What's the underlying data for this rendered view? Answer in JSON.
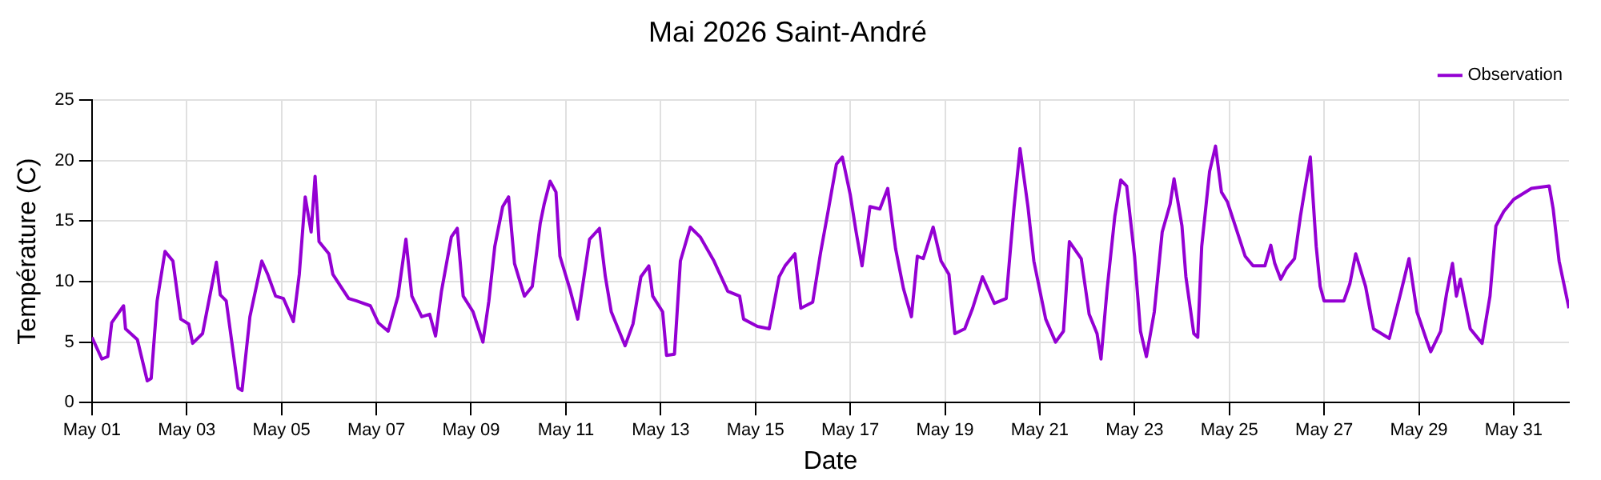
{
  "chart_data": {
    "type": "line",
    "title": "Mai 2026 Saint-André",
    "xlabel": "Date",
    "ylabel": "Température (C)",
    "xlim": [
      "2026-05-01T00:00",
      "2026-06-01T04:00"
    ],
    "xticks": [
      {
        "value": "2026-05-01",
        "label": "May 01"
      },
      {
        "value": "2026-05-03",
        "label": "May 03"
      },
      {
        "value": "2026-05-05",
        "label": "May 05"
      },
      {
        "value": "2026-05-07",
        "label": "May 07"
      },
      {
        "value": "2026-05-09",
        "label": "May 09"
      },
      {
        "value": "2026-05-11",
        "label": "May 11"
      },
      {
        "value": "2026-05-13",
        "label": "May 13"
      },
      {
        "value": "2026-05-15",
        "label": "May 15"
      },
      {
        "value": "2026-05-17",
        "label": "May 17"
      },
      {
        "value": "2026-05-19",
        "label": "May 19"
      },
      {
        "value": "2026-05-21",
        "label": "May 21"
      },
      {
        "value": "2026-05-23",
        "label": "May 23"
      },
      {
        "value": "2026-05-25",
        "label": "May 25"
      },
      {
        "value": "2026-05-27",
        "label": "May 27"
      },
      {
        "value": "2026-05-29",
        "label": "May 29"
      },
      {
        "value": "2026-05-31",
        "label": "May 31"
      }
    ],
    "ylim": [
      0,
      25
    ],
    "yticks": [
      0,
      5,
      10,
      15,
      20,
      25
    ],
    "grid": true,
    "legend": "top right",
    "marker": "none",
    "line_style": "solid",
    "x": [
      "2026-05-01T00:00",
      "2026-05-01T05:00",
      "2026-05-01T08:00",
      "2026-05-01T10:00",
      "2026-05-01T16:00",
      "2026-05-01T17:00",
      "2026-05-01T23:00",
      "2026-05-02T04:00",
      "2026-05-02T06:00",
      "2026-05-02T09:00",
      "2026-05-02T13:00",
      "2026-05-02T17:00",
      "2026-05-02T21:00",
      "2026-05-03T01:00",
      "2026-05-03T03:00",
      "2026-05-03T08:00",
      "2026-05-03T15:00",
      "2026-05-03T17:00",
      "2026-05-03T20:00",
      "2026-05-04T02:00",
      "2026-05-04T04:00",
      "2026-05-04T08:00",
      "2026-05-04T14:00",
      "2026-05-04T17:00",
      "2026-05-04T21:00",
      "2026-05-05T01:00",
      "2026-05-05T06:00",
      "2026-05-05T09:00",
      "2026-05-05T12:00",
      "2026-05-05T15:00",
      "2026-05-05T17:00",
      "2026-05-05T19:00",
      "2026-05-06T00:00",
      "2026-05-06T02:00",
      "2026-05-06T06:00",
      "2026-05-06T10:00",
      "2026-05-06T14:00",
      "2026-05-06T21:00",
      "2026-05-07T01:00",
      "2026-05-07T06:00",
      "2026-05-07T11:00",
      "2026-05-07T15:00",
      "2026-05-07T18:00",
      "2026-05-07T23:00",
      "2026-05-08T03:00",
      "2026-05-08T06:00",
      "2026-05-08T09:00",
      "2026-05-08T14:00",
      "2026-05-08T17:00",
      "2026-05-08T20:00",
      "2026-05-09T01:00",
      "2026-05-09T06:00",
      "2026-05-09T09:00",
      "2026-05-09T12:00",
      "2026-05-09T16:00",
      "2026-05-09T19:00",
      "2026-05-09T22:00",
      "2026-05-10T03:00",
      "2026-05-10T07:00",
      "2026-05-10T11:00",
      "2026-05-10T13:00",
      "2026-05-10T16:00",
      "2026-05-10T19:00",
      "2026-05-10T21:00",
      "2026-05-11T02:00",
      "2026-05-11T06:00",
      "2026-05-11T12:00",
      "2026-05-11T17:00",
      "2026-05-11T20:00",
      "2026-05-11T23:00",
      "2026-05-12T06:00",
      "2026-05-12T10:00",
      "2026-05-12T14:00",
      "2026-05-12T18:00",
      "2026-05-12T20:00",
      "2026-05-13T01:00",
      "2026-05-13T03:00",
      "2026-05-13T07:00",
      "2026-05-13T10:00",
      "2026-05-13T15:00",
      "2026-05-13T20:00",
      "2026-05-14T03:00",
      "2026-05-14T10:00",
      "2026-05-14T16:00",
      "2026-05-14T18:00",
      "2026-05-15T01:00",
      "2026-05-15T07:00",
      "2026-05-15T12:00",
      "2026-05-15T15:00",
      "2026-05-15T20:00",
      "2026-05-15T23:00",
      "2026-05-16T05:00",
      "2026-05-16T09:00",
      "2026-05-16T13:00",
      "2026-05-16T17:00",
      "2026-05-16T20:00",
      "2026-05-17T00:00",
      "2026-05-17T03:00",
      "2026-05-17T06:00",
      "2026-05-17T10:00",
      "2026-05-17T15:00",
      "2026-05-17T19:00",
      "2026-05-17T23:00",
      "2026-05-18T03:00",
      "2026-05-18T07:00",
      "2026-05-18T10:00",
      "2026-05-18T13:00",
      "2026-05-18T18:00",
      "2026-05-18T22:00",
      "2026-05-19T02:00",
      "2026-05-19T05:00",
      "2026-05-19T10:00",
      "2026-05-19T14:00",
      "2026-05-19T19:00",
      "2026-05-20T01:00",
      "2026-05-20T07:00",
      "2026-05-20T11:00",
      "2026-05-20T14:00",
      "2026-05-20T18:00",
      "2026-05-20T21:00",
      "2026-05-21T03:00",
      "2026-05-21T08:00",
      "2026-05-21T12:00",
      "2026-05-21T15:00",
      "2026-05-21T21:00",
      "2026-05-22T01:00",
      "2026-05-22T05:00",
      "2026-05-22T07:00",
      "2026-05-22T10:00",
      "2026-05-22T14:00",
      "2026-05-22T17:00",
      "2026-05-22T20:00",
      "2026-05-23T00:00",
      "2026-05-23T03:00",
      "2026-05-23T06:00",
      "2026-05-23T10:00",
      "2026-05-23T14:00",
      "2026-05-23T18:00",
      "2026-05-23T20:00",
      "2026-05-24T00:00",
      "2026-05-24T02:00",
      "2026-05-24T06:00",
      "2026-05-24T08:00",
      "2026-05-24T10:00",
      "2026-05-24T14:00",
      "2026-05-24T17:00",
      "2026-05-24T20:00",
      "2026-05-24T23:00",
      "2026-05-25T03:00",
      "2026-05-25T08:00",
      "2026-05-25T12:00",
      "2026-05-25T18:00",
      "2026-05-25T21:00",
      "2026-05-25T23:00",
      "2026-05-26T02:00",
      "2026-05-26T05:00",
      "2026-05-26T09:00",
      "2026-05-26T12:00",
      "2026-05-26T14:00",
      "2026-05-26T17:00",
      "2026-05-26T20:00",
      "2026-05-26T22:00",
      "2026-05-27T00:00",
      "2026-05-27T10:00",
      "2026-05-27T13:00",
      "2026-05-27T16:00",
      "2026-05-27T21:00",
      "2026-05-28T01:00",
      "2026-05-28T09:00",
      "2026-05-28T15:00",
      "2026-05-28T19:00",
      "2026-05-28T23:00",
      "2026-05-29T04:00",
      "2026-05-29T06:00",
      "2026-05-29T11:00",
      "2026-05-29T14:00",
      "2026-05-29T17:00",
      "2026-05-29T19:00",
      "2026-05-29T21:00",
      "2026-05-30T02:00",
      "2026-05-30T08:00",
      "2026-05-30T12:00",
      "2026-05-30T15:00",
      "2026-05-30T19:00",
      "2026-05-31T00:00",
      "2026-05-31T09:00",
      "2026-05-31T18:00",
      "2026-05-31T20:00",
      "2026-05-31T23:00",
      "2026-06-01T04:00"
    ],
    "series": [
      {
        "name": "Observation",
        "color": "#9400d3",
        "values": [
          5.4,
          3.6,
          3.8,
          6.6,
          8.0,
          6.1,
          5.2,
          1.8,
          2.0,
          8.4,
          12.5,
          11.7,
          6.9,
          6.5,
          4.9,
          5.7,
          11.6,
          8.9,
          8.4,
          1.2,
          1.0,
          7.1,
          11.7,
          10.6,
          8.8,
          8.6,
          6.7,
          10.6,
          17.0,
          14.1,
          18.7,
          13.3,
          12.3,
          10.6,
          9.6,
          8.6,
          8.4,
          8.0,
          6.6,
          5.9,
          8.8,
          13.5,
          8.8,
          7.1,
          7.3,
          5.5,
          9.2,
          13.7,
          14.4,
          8.8,
          7.5,
          5.0,
          8.4,
          12.9,
          16.2,
          17.0,
          11.5,
          8.8,
          9.6,
          14.8,
          16.4,
          18.3,
          17.4,
          12.1,
          9.4,
          6.9,
          13.5,
          14.4,
          10.4,
          7.5,
          4.7,
          6.5,
          10.4,
          11.3,
          8.8,
          7.5,
          3.9,
          4.0,
          11.7,
          14.5,
          13.7,
          11.7,
          9.2,
          8.8,
          6.9,
          6.3,
          6.1,
          10.4,
          11.3,
          12.3,
          7.8,
          8.3,
          12.4,
          16.0,
          19.7,
          20.3,
          17.2,
          14.1,
          11.3,
          16.2,
          16.0,
          17.7,
          12.7,
          9.4,
          7.1,
          12.1,
          11.9,
          14.5,
          11.7,
          10.6,
          5.7,
          6.1,
          7.8,
          10.4,
          8.2,
          8.6,
          16.2,
          21.0,
          16.2,
          11.7,
          6.9,
          5.0,
          5.9,
          13.3,
          11.9,
          7.3,
          5.7,
          3.6,
          9.2,
          15.4,
          18.4,
          17.9,
          12.1,
          5.9,
          3.8,
          7.5,
          14.1,
          16.4,
          18.5,
          14.6,
          10.4,
          5.7,
          5.4,
          12.9,
          19.1,
          21.2,
          17.4,
          16.6,
          14.6,
          12.1,
          11.3,
          11.3,
          13.0,
          11.5,
          10.2,
          11.1,
          11.9,
          15.4,
          17.4,
          20.3,
          12.9,
          9.6,
          8.4,
          8.4,
          9.8,
          12.3,
          9.6,
          6.1,
          5.3,
          9.2,
          11.9,
          7.5,
          5.1,
          4.2,
          5.9,
          9.0,
          11.5,
          8.8,
          10.2,
          6.1,
          4.9,
          8.8,
          14.6,
          15.8,
          16.8,
          17.7,
          17.9,
          16.0,
          11.7,
          7.8
        ]
      }
    ]
  }
}
